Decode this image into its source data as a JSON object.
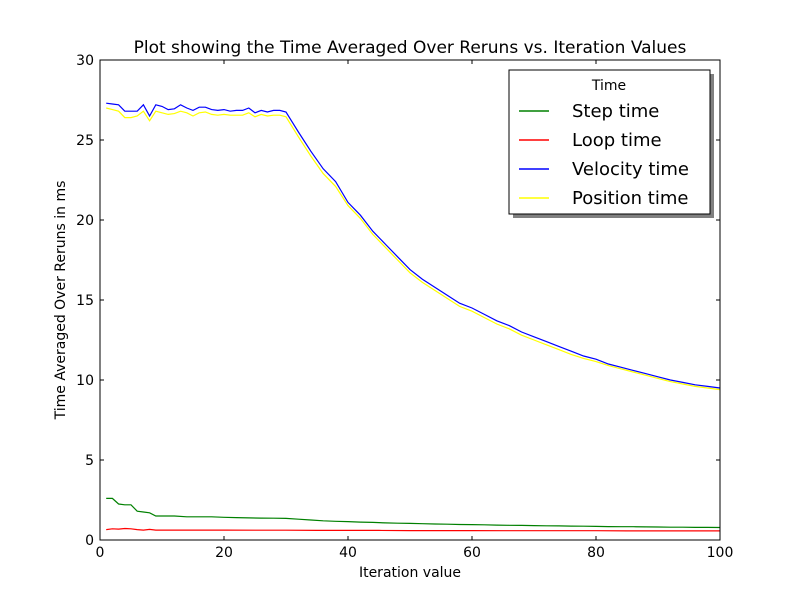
{
  "chart_data": {
    "type": "line",
    "title": "Plot showing the Time Averaged Over Reruns vs. Iteration Values",
    "xlabel": "Iteration value",
    "ylabel": "Time Averaged Over Reruns in ms",
    "xlim": [
      0,
      100
    ],
    "ylim": [
      0,
      30
    ],
    "xticks": [
      0,
      20,
      40,
      60,
      80,
      100
    ],
    "yticks": [
      0,
      5,
      10,
      15,
      20,
      25,
      30
    ],
    "grid": false,
    "legend": {
      "title": "Time",
      "placement": "top-right"
    },
    "series": [
      {
        "name": "Step time",
        "color": "#008000",
        "x": [
          1,
          2,
          3,
          4,
          5,
          6,
          7,
          8,
          9,
          10,
          12,
          14,
          16,
          18,
          20,
          22,
          24,
          26,
          28,
          30,
          32,
          34,
          36,
          38,
          40,
          42,
          44,
          46,
          48,
          50,
          52,
          54,
          56,
          58,
          60,
          62,
          64,
          66,
          68,
          70,
          72,
          74,
          76,
          78,
          80,
          82,
          84,
          86,
          88,
          90,
          92,
          94,
          96,
          98,
          100
        ],
        "y": [
          2.6,
          2.6,
          2.25,
          2.2,
          2.2,
          1.8,
          1.75,
          1.7,
          1.5,
          1.5,
          1.5,
          1.45,
          1.45,
          1.45,
          1.42,
          1.4,
          1.38,
          1.37,
          1.36,
          1.35,
          1.3,
          1.25,
          1.2,
          1.17,
          1.15,
          1.12,
          1.1,
          1.07,
          1.05,
          1.04,
          1.02,
          1.0,
          0.99,
          0.97,
          0.96,
          0.95,
          0.93,
          0.92,
          0.91,
          0.9,
          0.89,
          0.88,
          0.87,
          0.86,
          0.85,
          0.84,
          0.83,
          0.83,
          0.82,
          0.81,
          0.8,
          0.8,
          0.79,
          0.79,
          0.78
        ]
      },
      {
        "name": "Loop time",
        "color": "#ff0000",
        "x": [
          1,
          2,
          3,
          4,
          5,
          6,
          7,
          8,
          9,
          10,
          15,
          20,
          25,
          30,
          35,
          40,
          45,
          50,
          55,
          60,
          65,
          70,
          75,
          80,
          85,
          90,
          95,
          100
        ],
        "y": [
          0.65,
          0.7,
          0.68,
          0.72,
          0.7,
          0.65,
          0.62,
          0.66,
          0.62,
          0.62,
          0.62,
          0.62,
          0.61,
          0.61,
          0.6,
          0.6,
          0.6,
          0.59,
          0.59,
          0.59,
          0.58,
          0.58,
          0.58,
          0.58,
          0.57,
          0.57,
          0.57,
          0.57
        ]
      },
      {
        "name": "Velocity time",
        "color": "#0000ff",
        "x": [
          1,
          2,
          3,
          4,
          5,
          6,
          7,
          8,
          9,
          10,
          11,
          12,
          13,
          14,
          15,
          16,
          17,
          18,
          19,
          20,
          21,
          22,
          23,
          24,
          25,
          26,
          27,
          28,
          29,
          30,
          32,
          34,
          36,
          38,
          40,
          42,
          44,
          46,
          48,
          50,
          52,
          54,
          56,
          58,
          60,
          62,
          64,
          66,
          68,
          70,
          72,
          74,
          76,
          78,
          80,
          82,
          84,
          86,
          88,
          90,
          92,
          94,
          96,
          98,
          100
        ],
        "y": [
          27.3,
          27.25,
          27.2,
          26.8,
          26.8,
          26.8,
          27.2,
          26.5,
          27.2,
          27.1,
          26.9,
          26.95,
          27.2,
          27.0,
          26.85,
          27.05,
          27.05,
          26.9,
          26.85,
          26.9,
          26.8,
          26.85,
          26.85,
          27.0,
          26.7,
          26.85,
          26.75,
          26.85,
          26.85,
          26.75,
          25.5,
          24.3,
          23.2,
          22.4,
          21.1,
          20.3,
          19.3,
          18.5,
          17.7,
          16.9,
          16.3,
          15.8,
          15.3,
          14.8,
          14.5,
          14.1,
          13.7,
          13.4,
          13.0,
          12.7,
          12.4,
          12.1,
          11.8,
          11.5,
          11.3,
          11.0,
          10.8,
          10.6,
          10.4,
          10.2,
          10.0,
          9.85,
          9.7,
          9.6,
          9.5
        ]
      },
      {
        "name": "Position time",
        "color": "#ffff00",
        "x": [
          1,
          2,
          3,
          4,
          5,
          6,
          7,
          8,
          9,
          10,
          11,
          12,
          13,
          14,
          15,
          16,
          17,
          18,
          19,
          20,
          21,
          22,
          23,
          24,
          25,
          26,
          27,
          28,
          29,
          30,
          32,
          34,
          36,
          38,
          40,
          42,
          44,
          46,
          48,
          50,
          52,
          54,
          56,
          58,
          60,
          62,
          64,
          66,
          68,
          70,
          72,
          74,
          76,
          78,
          80,
          82,
          84,
          86,
          88,
          90,
          92,
          94,
          96,
          98,
          100
        ],
        "y": [
          27.0,
          26.9,
          26.8,
          26.4,
          26.4,
          26.5,
          26.8,
          26.2,
          26.8,
          26.7,
          26.6,
          26.65,
          26.8,
          26.7,
          26.5,
          26.7,
          26.75,
          26.6,
          26.55,
          26.6,
          26.55,
          26.55,
          26.55,
          26.7,
          26.45,
          26.6,
          26.5,
          26.55,
          26.55,
          26.45,
          25.2,
          24.0,
          22.9,
          22.1,
          20.9,
          20.1,
          19.1,
          18.3,
          17.5,
          16.7,
          16.1,
          15.6,
          15.1,
          14.6,
          14.3,
          13.9,
          13.5,
          13.2,
          12.8,
          12.5,
          12.2,
          11.9,
          11.6,
          11.35,
          11.15,
          10.9,
          10.7,
          10.5,
          10.3,
          10.1,
          9.9,
          9.75,
          9.6,
          9.5,
          9.4
        ]
      }
    ]
  }
}
